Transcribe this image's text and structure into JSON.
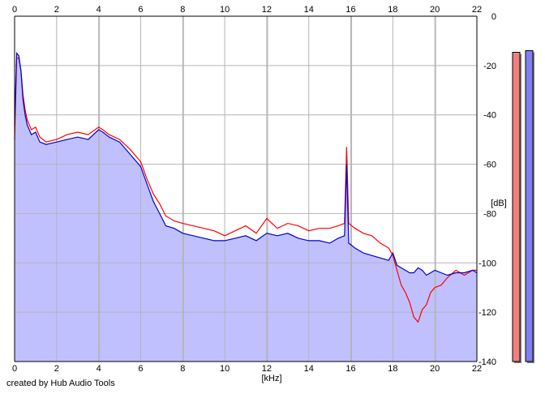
{
  "chart_data": {
    "type": "area",
    "xlabel": "[kHz]",
    "ylabel": "[dB]",
    "xlim": [
      0,
      22
    ],
    "ylim": [
      -140,
      0
    ],
    "x_ticks": [
      0,
      2,
      4,
      6,
      8,
      10,
      12,
      14,
      16,
      18,
      20,
      22
    ],
    "y_ticks": [
      0,
      -20,
      -40,
      -60,
      -80,
      -100,
      -120,
      -140
    ],
    "grid": true,
    "series": [
      {
        "color": "#ff0000",
        "x": [
          0,
          0.1,
          0.2,
          0.3,
          0.4,
          0.5,
          0.6,
          0.8,
          1.0,
          1.2,
          1.5,
          2.0,
          2.5,
          3.0,
          3.5,
          4.0,
          4.2,
          4.5,
          5.0,
          5.5,
          6.0,
          6.3,
          6.6,
          6.9,
          7.2,
          7.6,
          8.0,
          8.5,
          9.0,
          9.5,
          10.0,
          10.5,
          11.0,
          11.5,
          12.0,
          12.5,
          13.0,
          13.5,
          14.0,
          14.5,
          15.0,
          15.4,
          15.7,
          15.8,
          15.9,
          16.2,
          16.6,
          17.0,
          17.4,
          17.8,
          18.0,
          18.2,
          18.4,
          18.6,
          18.8,
          19.0,
          19.2,
          19.4,
          19.6,
          19.8,
          20.0,
          20.3,
          20.6,
          21.0,
          21.4,
          21.8,
          22.0
        ],
        "y": [
          -50,
          -17,
          -17,
          -22,
          -32,
          -38,
          -42,
          -46,
          -45,
          -49,
          -51,
          -50,
          -48,
          -47,
          -48,
          -45,
          -46,
          -48,
          -50,
          -54,
          -59,
          -66,
          -72,
          -76,
          -81,
          -83,
          -84,
          -85,
          -86,
          -87,
          -89,
          -87,
          -85,
          -88,
          -82,
          -86,
          -84,
          -85,
          -87,
          -86,
          -86,
          -85,
          -84,
          -53,
          -84,
          -86,
          -88,
          -89,
          -92,
          -94,
          -97,
          -103,
          -109,
          -112,
          -116,
          -122,
          -124,
          -119,
          -117,
          -112,
          -110,
          -109,
          -106,
          -103,
          -105,
          -103,
          -103
        ]
      },
      {
        "color": "#0000cc",
        "x": [
          0,
          0.1,
          0.2,
          0.3,
          0.4,
          0.5,
          0.6,
          0.8,
          1.0,
          1.2,
          1.5,
          2.0,
          2.5,
          3.0,
          3.5,
          4.0,
          4.2,
          4.5,
          5.0,
          5.5,
          6.0,
          6.3,
          6.6,
          6.9,
          7.2,
          7.6,
          8.0,
          8.5,
          9.0,
          9.5,
          10.0,
          10.5,
          11.0,
          11.5,
          12.0,
          12.5,
          13.0,
          13.5,
          14.0,
          14.5,
          15.0,
          15.4,
          15.7,
          15.8,
          15.9,
          16.2,
          16.6,
          17.0,
          17.4,
          17.8,
          18.0,
          18.2,
          18.4,
          18.6,
          18.8,
          19.0,
          19.2,
          19.4,
          19.6,
          19.8,
          20.0,
          20.3,
          20.6,
          21.0,
          21.4,
          21.8,
          22.0
        ],
        "y": [
          -44,
          -15,
          -16,
          -22,
          -34,
          -40,
          -44,
          -48,
          -47,
          -51,
          -52,
          -51,
          -50,
          -49,
          -50,
          -46,
          -47,
          -49,
          -51,
          -56,
          -61,
          -68,
          -75,
          -80,
          -85,
          -86,
          -88,
          -89,
          -90,
          -91,
          -91,
          -90,
          -89,
          -91,
          -88,
          -89,
          -88,
          -90,
          -91,
          -91,
          -92,
          -90,
          -89,
          -60,
          -92,
          -94,
          -96,
          -97,
          -98,
          -99,
          -96,
          -101,
          -102,
          -103,
          -104,
          -104,
          -102,
          -103,
          -105,
          -104,
          -103,
          -104,
          -105,
          -104,
          -104,
          -103,
          -104
        ]
      }
    ],
    "level_meters": [
      {
        "color": "#f08080",
        "level": 0.935
      },
      {
        "color": "#8080f0",
        "level": 0.94
      }
    ],
    "colors": {
      "fill": "#c0c0ff",
      "grid": "#b4b4b4",
      "axis": "#000000"
    }
  },
  "footer": {
    "credit": "created by Hub Audio Tools"
  }
}
